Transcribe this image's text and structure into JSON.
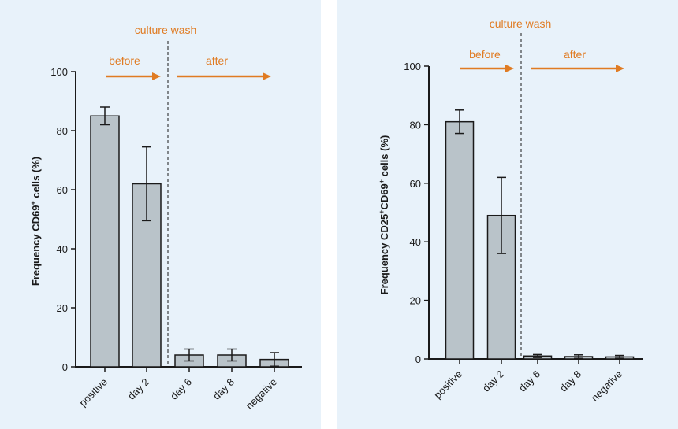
{
  "colors": {
    "panel_bg": "#e8f2fa",
    "bar_fill": "#b9c3c9",
    "bar_stroke": "#1a1a1a",
    "annotation": "#e07b22"
  },
  "chart_data": [
    {
      "type": "bar",
      "categories": [
        "positive",
        "day 2",
        "day 6",
        "day 8",
        "negative"
      ],
      "values": [
        85,
        62,
        4,
        4,
        2.5
      ],
      "errors": [
        3,
        12.5,
        2,
        2,
        2.3
      ],
      "ylabel_prefix": "Frequency CD69",
      "ylabel_sup1": "+",
      "ylabel_suffix": " cells (%)",
      "ylim": [
        0,
        100
      ],
      "yticks": [
        "0",
        "20",
        "40",
        "60",
        "80",
        "100"
      ],
      "annotations": {
        "top": "culture wash",
        "before": "before",
        "after": "after"
      },
      "grid": false
    },
    {
      "type": "bar",
      "categories": [
        "positive",
        "day 2",
        "day 6",
        "day 8",
        "negative"
      ],
      "values": [
        81,
        49,
        1,
        0.8,
        0.7
      ],
      "errors": [
        4,
        13,
        0.5,
        0.6,
        0.5
      ],
      "ylabel_prefix": "Frequency CD25",
      "ylabel_sup1": "+",
      "ylabel_mid": "CD69",
      "ylabel_sup2": "+",
      "ylabel_suffix": " cells (%)",
      "ylim": [
        0,
        100
      ],
      "yticks": [
        "0",
        "20",
        "40",
        "60",
        "80",
        "100"
      ],
      "annotations": {
        "top": "culture wash",
        "before": "before",
        "after": "after"
      },
      "grid": false
    }
  ]
}
